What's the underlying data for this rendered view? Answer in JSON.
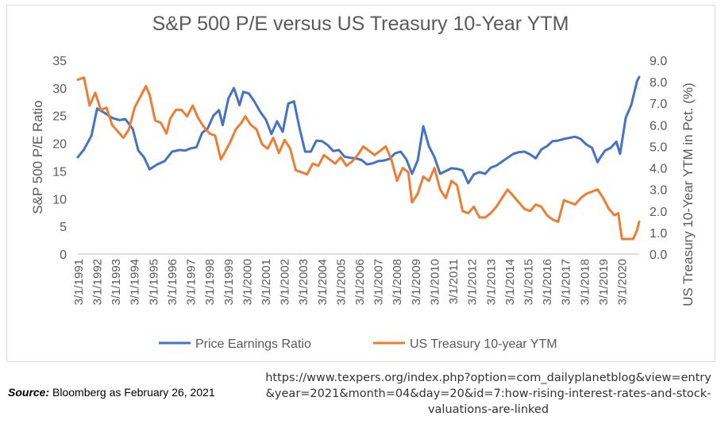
{
  "chart_data": {
    "type": "line",
    "title": "S&P 500 P/E versus US Treasury 10-Year YTM",
    "xlabel": "",
    "ylabel": "S&P 500 P/E Ratio",
    "y2label": "US Treasury 10-Year YTM in Pct. (%)",
    "ylim": [
      0,
      35
    ],
    "y2lim": [
      0,
      9
    ],
    "yticks": [
      "0",
      "5",
      "10",
      "15",
      "20",
      "25",
      "30",
      "35"
    ],
    "y2ticks": [
      "0.0",
      "1.0",
      "2.0",
      "3.0",
      "4.0",
      "5.0",
      "6.0",
      "7.0",
      "8.0",
      "9.0"
    ],
    "categories": [
      "3/1/1991",
      "3/1/1992",
      "3/1/1993",
      "3/1/1994",
      "3/1/1995",
      "3/1/1996",
      "3/1/1997",
      "3/1/1998",
      "3/1/1999",
      "3/1/2000",
      "3/1/2001",
      "3/1/2002",
      "3/1/2003",
      "3/1/2004",
      "3/1/2005",
      "3/1/2006",
      "3/1/2007",
      "3/1/2008",
      "3/1/2009",
      "3/1/2010",
      "3/1/2011",
      "3/1/2012",
      "3/1/2013",
      "3/1/2014",
      "3/1/2015",
      "3/1/2016",
      "3/1/2017",
      "3/1/2018",
      "3/1/2019",
      "3/1/2020"
    ],
    "x_start": 1991.17,
    "x_end": 2021.12,
    "legend_position": "bottom",
    "series": [
      {
        "name": "Price Earnings Ratio",
        "axis": "left",
        "color": "#4472c4",
        "x": [
          1991.17,
          1991.5,
          1991.9,
          1992.2,
          1992.6,
          1993.0,
          1993.4,
          1993.7,
          1994.1,
          1994.4,
          1994.7,
          1995.0,
          1995.4,
          1995.8,
          1996.2,
          1996.6,
          1996.9,
          1997.2,
          1997.5,
          1997.8,
          1998.1,
          1998.4,
          1998.7,
          1998.9,
          1999.2,
          1999.5,
          1999.8,
          2000.0,
          2000.3,
          2000.6,
          2000.9,
          2001.2,
          2001.5,
          2001.8,
          2002.1,
          2002.4,
          2002.7,
          2003.0,
          2003.3,
          2003.6,
          2003.9,
          2004.2,
          2004.5,
          2004.8,
          2005.1,
          2005.4,
          2005.7,
          2006.0,
          2006.3,
          2006.6,
          2006.9,
          2007.2,
          2007.5,
          2007.8,
          2008.1,
          2008.4,
          2008.7,
          2009.0,
          2009.3,
          2009.6,
          2009.9,
          2010.2,
          2010.5,
          2010.8,
          2011.1,
          2011.4,
          2011.7,
          2012.0,
          2012.3,
          2012.6,
          2012.9,
          2013.2,
          2013.5,
          2013.8,
          2014.1,
          2014.4,
          2014.7,
          2015.0,
          2015.3,
          2015.6,
          2015.9,
          2016.2,
          2016.5,
          2016.8,
          2017.1,
          2017.4,
          2017.7,
          2018.0,
          2018.3,
          2018.6,
          2018.9,
          2019.0,
          2019.3,
          2019.6,
          2019.9,
          2020.1,
          2020.4,
          2020.7,
          2021.0,
          2021.12
        ],
        "values": [
          17.5,
          18.9,
          21.4,
          26.3,
          25.5,
          24.6,
          24.2,
          24.4,
          22.6,
          18.7,
          17.5,
          15.3,
          16.2,
          16.8,
          18.5,
          18.8,
          18.7,
          19.1,
          19.3,
          21.9,
          22.7,
          25.0,
          26.0,
          23.3,
          28.1,
          30.0,
          26.9,
          29.3,
          29.0,
          27.5,
          25.7,
          24.3,
          21.7,
          24.0,
          22.1,
          27.2,
          27.6,
          22.7,
          18.5,
          18.5,
          20.5,
          20.4,
          19.7,
          18.6,
          18.8,
          17.6,
          17.4,
          17.3,
          17.0,
          16.2,
          16.4,
          16.8,
          16.9,
          17.2,
          18.2,
          18.5,
          17.1,
          14.5,
          16.9,
          23.1,
          19.5,
          17.5,
          14.5,
          15.0,
          15.5,
          15.4,
          15.1,
          12.8,
          14.4,
          14.8,
          14.5,
          15.6,
          16.0,
          16.7,
          17.4,
          18.1,
          18.4,
          18.5,
          18.0,
          17.3,
          18.9,
          19.5,
          20.4,
          20.5,
          20.8,
          21.0,
          21.2,
          20.8,
          19.8,
          19.2,
          16.6,
          17.2,
          18.7,
          19.2,
          20.3,
          18.1,
          24.6,
          27.0,
          31.2,
          32.0
        ]
      },
      {
        "name": "US Treasury 10-year YTM",
        "axis": "right",
        "color": "#ed7d31",
        "x": [
          1991.17,
          1991.5,
          1991.8,
          1992.1,
          1992.4,
          1992.7,
          1993.0,
          1993.3,
          1993.6,
          1993.9,
          1994.2,
          1994.5,
          1994.8,
          1995.0,
          1995.3,
          1995.6,
          1995.9,
          1996.1,
          1996.4,
          1996.7,
          1997.0,
          1997.3,
          1997.6,
          1997.9,
          1998.2,
          1998.5,
          1998.8,
          1999.0,
          1999.3,
          1999.6,
          1999.9,
          2000.1,
          2000.4,
          2000.7,
          2001.0,
          2001.3,
          2001.6,
          2001.9,
          2002.2,
          2002.5,
          2002.8,
          2003.1,
          2003.4,
          2003.7,
          2004.0,
          2004.3,
          2004.6,
          2004.9,
          2005.2,
          2005.5,
          2005.8,
          2006.1,
          2006.4,
          2006.7,
          2007.0,
          2007.3,
          2007.6,
          2007.9,
          2008.2,
          2008.5,
          2008.8,
          2009.0,
          2009.3,
          2009.6,
          2009.9,
          2010.2,
          2010.5,
          2010.8,
          2011.1,
          2011.4,
          2011.7,
          2012.0,
          2012.3,
          2012.6,
          2012.9,
          2013.2,
          2013.5,
          2013.8,
          2014.1,
          2014.4,
          2014.7,
          2015.0,
          2015.3,
          2015.6,
          2015.9,
          2016.2,
          2016.5,
          2016.8,
          2017.1,
          2017.4,
          2017.7,
          2018.0,
          2018.3,
          2018.6,
          2018.9,
          2019.2,
          2019.5,
          2019.8,
          2020.0,
          2020.2,
          2020.5,
          2020.8,
          2021.0,
          2021.12
        ],
        "values": [
          8.1,
          8.2,
          6.9,
          7.5,
          6.7,
          6.8,
          6.0,
          5.7,
          5.4,
          5.8,
          6.8,
          7.3,
          7.8,
          7.4,
          6.2,
          6.1,
          5.6,
          6.3,
          6.7,
          6.7,
          6.4,
          6.9,
          6.3,
          5.9,
          5.6,
          5.5,
          4.4,
          4.7,
          5.2,
          5.8,
          6.1,
          6.4,
          6.0,
          5.8,
          5.1,
          4.9,
          5.4,
          4.7,
          5.3,
          4.9,
          3.9,
          3.8,
          3.7,
          4.2,
          4.1,
          4.6,
          4.4,
          4.2,
          4.5,
          4.1,
          4.3,
          4.6,
          5.0,
          4.8,
          4.6,
          4.8,
          5.0,
          4.4,
          3.4,
          4.0,
          3.8,
          2.4,
          2.8,
          3.6,
          3.4,
          4.0,
          3.0,
          2.6,
          3.4,
          3.2,
          2.0,
          1.9,
          2.2,
          1.7,
          1.7,
          1.9,
          2.2,
          2.6,
          3.0,
          2.7,
          2.4,
          2.1,
          2.0,
          2.3,
          2.2,
          1.8,
          1.6,
          1.5,
          2.5,
          2.4,
          2.3,
          2.6,
          2.8,
          2.9,
          3.0,
          2.6,
          2.1,
          1.8,
          1.9,
          0.7,
          0.7,
          0.7,
          1.1,
          1.5
        ]
      }
    ]
  },
  "source_label": "Source:",
  "source_text": "Bloomberg as February 26, 2021",
  "url_text": "https://www.texpers.org/index.php?option=com_dailyplanetblog&view=entry&year=2021&month=04&day=20&id=7:how-rising-interest-rates-and-stock-valuations-are-linked"
}
